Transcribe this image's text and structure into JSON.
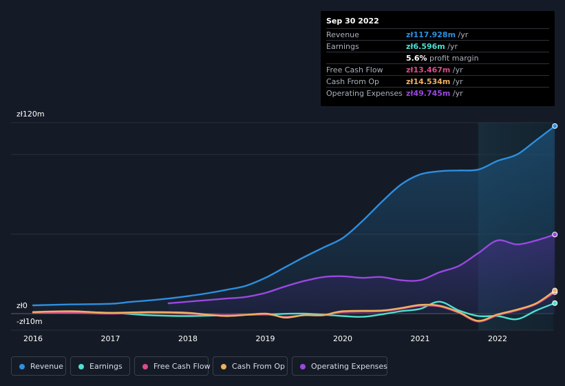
{
  "chart_data": {
    "type": "area",
    "y_tick_labels": {
      "top": "zł120m",
      "zero": "zł0",
      "bottom": "-zł10m"
    },
    "ylim": [
      -10,
      120
    ],
    "x_tick_labels": [
      "2016",
      "2017",
      "2018",
      "2019",
      "2020",
      "2021",
      "2022"
    ],
    "x_tick_values": [
      2016,
      2017,
      2018,
      2019,
      2020,
      2021,
      2022
    ],
    "xlim": [
      2015.97,
      2022.74
    ],
    "forecast_region_start": 2021.75,
    "series": [
      {
        "name": "Revenue",
        "color": "#2e8fe0",
        "fill": true,
        "x": [
          2016.0,
          2016.5,
          2017.0,
          2017.25,
          2017.5,
          2017.75,
          2018.0,
          2018.25,
          2018.5,
          2018.75,
          2019.0,
          2019.25,
          2019.5,
          2019.75,
          2020.0,
          2020.25,
          2020.5,
          2020.75,
          2021.0,
          2021.25,
          2021.5,
          2021.75,
          2022.0,
          2022.25,
          2022.5,
          2022.74
        ],
        "y": [
          5.2,
          5.8,
          6.2,
          7.3,
          8.3,
          9.5,
          11.0,
          12.8,
          15.0,
          17.5,
          22.5,
          29.0,
          35.5,
          41.5,
          47.5,
          58.0,
          70.0,
          81.0,
          87.5,
          89.5,
          90.0,
          90.5,
          96.0,
          100.0,
          109.0,
          117.9
        ]
      },
      {
        "name": "Earnings",
        "color": "#4fe0d0",
        "fill": false,
        "x": [
          2016.0,
          2016.5,
          2017.0,
          2017.5,
          2018.0,
          2018.5,
          2019.0,
          2019.5,
          2020.0,
          2020.25,
          2020.5,
          2020.75,
          2021.0,
          2021.25,
          2021.5,
          2021.75,
          2022.0,
          2022.25,
          2022.5,
          2022.74
        ],
        "y": [
          0.5,
          1.0,
          0.5,
          -1.0,
          -1.5,
          -1.0,
          -0.5,
          0.0,
          -1.5,
          -2.0,
          -0.5,
          1.5,
          3.0,
          7.5,
          2.0,
          -1.5,
          -1.5,
          -3.5,
          2.0,
          6.6
        ]
      },
      {
        "name": "Free Cash Flow",
        "color": "#d94d8a",
        "fill": false,
        "x": [
          2016.0,
          2016.5,
          2017.0,
          2017.5,
          2018.0,
          2018.5,
          2019.0,
          2019.25,
          2019.5,
          2019.75,
          2020.0,
          2020.5,
          2020.75,
          2021.0,
          2021.25,
          2021.5,
          2021.75,
          2022.0,
          2022.25,
          2022.5,
          2022.74
        ],
        "y": [
          0.5,
          0.5,
          0.0,
          0.5,
          0.0,
          -1.0,
          -0.5,
          -2.0,
          -1.0,
          -1.0,
          1.0,
          1.5,
          3.0,
          5.0,
          4.5,
          0.5,
          -5.0,
          -1.0,
          2.0,
          6.0,
          13.5
        ]
      },
      {
        "name": "Cash From Op",
        "color": "#f0b060",
        "fill": false,
        "x": [
          2016.0,
          2016.5,
          2017.0,
          2017.5,
          2018.0,
          2018.5,
          2019.0,
          2019.25,
          2019.5,
          2019.75,
          2020.0,
          2020.5,
          2020.75,
          2021.0,
          2021.25,
          2021.5,
          2021.75,
          2022.0,
          2022.25,
          2022.5,
          2022.74
        ],
        "y": [
          1.0,
          1.5,
          0.5,
          1.0,
          0.5,
          -1.5,
          0.0,
          -2.5,
          -1.0,
          -1.0,
          1.5,
          2.0,
          3.5,
          5.5,
          5.0,
          1.0,
          -4.5,
          -0.5,
          2.5,
          6.5,
          14.5
        ]
      },
      {
        "name": "Operating Expenses",
        "color": "#9a48e0",
        "fill": true,
        "x": [
          2017.75,
          2018.0,
          2018.25,
          2018.5,
          2018.75,
          2019.0,
          2019.25,
          2019.5,
          2019.75,
          2020.0,
          2020.25,
          2020.5,
          2020.75,
          2021.0,
          2021.25,
          2021.5,
          2021.75,
          2022.0,
          2022.25,
          2022.5,
          2022.74
        ],
        "y": [
          6.5,
          7.5,
          8.5,
          9.5,
          10.5,
          13.0,
          17.0,
          20.5,
          23.0,
          23.5,
          22.5,
          23.0,
          21.0,
          21.0,
          26.0,
          30.0,
          38.0,
          46.0,
          43.5,
          46.0,
          49.7
        ]
      }
    ]
  },
  "tooltip": {
    "date": "Sep 30 2022",
    "rows": [
      {
        "label": "Revenue",
        "value": "zł117.928m",
        "unit": "/yr",
        "color": "#2e8fe0"
      },
      {
        "label": "Earnings",
        "value": "zł6.596m",
        "unit": "/yr",
        "color": "#4fe0d0"
      },
      {
        "label": "",
        "value": "5.6%",
        "unit": "profit margin",
        "color": "#ffffff"
      },
      {
        "label": "Free Cash Flow",
        "value": "zł13.467m",
        "unit": "/yr",
        "color": "#d94d8a"
      },
      {
        "label": "Cash From Op",
        "value": "zł14.534m",
        "unit": "/yr",
        "color": "#f0b060"
      },
      {
        "label": "Operating Expenses",
        "value": "zł49.745m",
        "unit": "/yr",
        "color": "#9a48e0"
      }
    ]
  },
  "legend": [
    {
      "label": "Revenue",
      "color": "#2e8fe0"
    },
    {
      "label": "Earnings",
      "color": "#4fe0d0"
    },
    {
      "label": "Free Cash Flow",
      "color": "#d94d8a"
    },
    {
      "label": "Cash From Op",
      "color": "#f0b060"
    },
    {
      "label": "Operating Expenses",
      "color": "#9a48e0"
    }
  ]
}
